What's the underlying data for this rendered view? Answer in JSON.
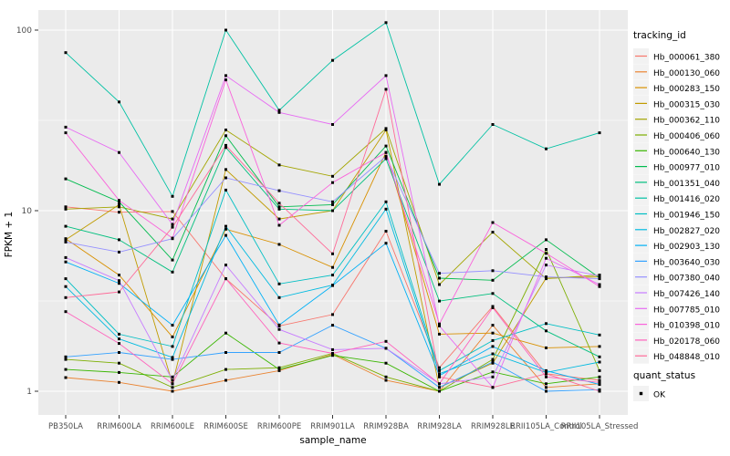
{
  "figure": {
    "y_axis": {
      "label": "FPKM + 1",
      "tick_labels": [
        "1",
        "10",
        "100"
      ]
    },
    "x_axis": {
      "label": "sample_name"
    },
    "legend": {
      "tracking_title": "tracking_id",
      "quant_title": "quant_status",
      "quant_item_label": "OK"
    },
    "colors": {
      "panel_bg": "#EBEBEB",
      "grid": "#FFFFFF",
      "axis_text": "#4D4D4D",
      "tick_mark": "#333333",
      "title_text": "#000000",
      "legend_key_bg": "#F2F2F2",
      "point": "#000000"
    }
  },
  "chart_data": {
    "type": "line",
    "title": "",
    "xlabel": "sample_name",
    "ylabel": "FPKM + 1",
    "y_scale": "log10",
    "ylim": [
      1,
      130
    ],
    "y_ticks": [
      1,
      10,
      100
    ],
    "y_minor_ticks": [
      3.1623,
      31.623
    ],
    "grid": true,
    "legend_position": "right",
    "point_marker": "black-square",
    "categories": [
      "PB350LA",
      "RRIM600LA",
      "RRIM600LE",
      "RRIM600SE",
      "RRIM600PE",
      "RRIM901LA",
      "RRIM928BA",
      "RRIM928LA",
      "RRIM928LE",
      "RRII105LA_Control",
      "RRII105LA_Stressed"
    ],
    "series": [
      {
        "name": "Hb_000061_380",
        "color": "#F8766D",
        "values": [
          10.5,
          9.8,
          9.9,
          4.2,
          2.3,
          2.66,
          7.7,
          1.35,
          2.95,
          1.25,
          1.15
        ]
      },
      {
        "name": "Hb_000130_060",
        "color": "#EA8331",
        "values": [
          1.19,
          1.12,
          1.0,
          1.15,
          1.3,
          1.6,
          1.15,
          1.0,
          2.32,
          1.05,
          1.1
        ]
      },
      {
        "name": "Hb_000283_150",
        "color": "#D89000",
        "values": [
          7.0,
          4.4,
          2.0,
          7.9,
          6.5,
          4.85,
          21,
          2.07,
          2.1,
          1.74,
          1.77
        ]
      },
      {
        "name": "Hb_000315_030",
        "color": "#C09B00",
        "values": [
          6.9,
          10.8,
          1.1,
          16.9,
          9.0,
          10.0,
          28,
          1.05,
          1.43,
          4.23,
          4.3
        ]
      },
      {
        "name": "Hb_000362_110",
        "color": "#A3A500",
        "values": [
          10.2,
          10.5,
          9.0,
          28,
          17.9,
          15.5,
          28.5,
          3.9,
          7.6,
          4.2,
          4.4
        ]
      },
      {
        "name": "Hb_000406_060",
        "color": "#7CAE00",
        "values": [
          1.5,
          1.43,
          1.05,
          1.32,
          1.35,
          1.62,
          1.2,
          1.0,
          1.5,
          6.1,
          1.3
        ]
      },
      {
        "name": "Hb_000640_130",
        "color": "#39B600",
        "values": [
          1.32,
          1.27,
          1.2,
          2.1,
          1.32,
          1.58,
          1.43,
          1.0,
          1.28,
          1.1,
          1.2
        ]
      },
      {
        "name": "Hb_000977_010",
        "color": "#00BB4E",
        "values": [
          15,
          11.2,
          5.33,
          26,
          10.5,
          10.8,
          22.8,
          4.23,
          4.12,
          6.9,
          4.25
        ]
      },
      {
        "name": "Hb_001351_040",
        "color": "#00BF7D",
        "values": [
          8.2,
          6.9,
          4.57,
          22.4,
          10.2,
          10.0,
          19.4,
          3.16,
          3.48,
          2.16,
          1.55
        ]
      },
      {
        "name": "Hb_001416_020",
        "color": "#00C1A3",
        "values": [
          75,
          40,
          12,
          100,
          36,
          68,
          110,
          14,
          30,
          22,
          27
        ]
      },
      {
        "name": "Hb_001946_150",
        "color": "#00BFC4",
        "values": [
          4.2,
          2.07,
          1.77,
          13,
          3.93,
          4.4,
          11.2,
          1.3,
          1.91,
          2.37,
          2.05
        ]
      },
      {
        "name": "Hb_002827_020",
        "color": "#00BAE0",
        "values": [
          3.8,
          1.95,
          1.54,
          8.2,
          3.3,
          3.87,
          10.2,
          1.25,
          1.61,
          1.27,
          1.45
        ]
      },
      {
        "name": "Hb_002903_130",
        "color": "#00B0F6",
        "values": [
          5.2,
          3.96,
          2.32,
          7.3,
          2.33,
          3.85,
          6.6,
          1.22,
          1.77,
          1.3,
          1.09
        ]
      },
      {
        "name": "Hb_003640_030",
        "color": "#35A2FF",
        "values": [
          1.55,
          1.64,
          1.5,
          1.64,
          1.64,
          2.32,
          1.73,
          1.05,
          1.45,
          1.0,
          1.02
        ]
      },
      {
        "name": "Hb_007380_040",
        "color": "#9590FF",
        "values": [
          6.7,
          5.9,
          7.0,
          15.2,
          12.9,
          11.2,
          20,
          4.5,
          4.65,
          4.3,
          4.2
        ]
      },
      {
        "name": "Hb_007426_140",
        "color": "#C77CFF",
        "values": [
          5.5,
          4.1,
          1.15,
          5.0,
          2.2,
          1.7,
          1.73,
          1.1,
          1.2,
          5.0,
          4.35
        ]
      },
      {
        "name": "Hb_007785_010",
        "color": "#E76BF3",
        "values": [
          29,
          21,
          8.4,
          56,
          35,
          30,
          56,
          2.3,
          1.05,
          5.45,
          3.9
        ]
      },
      {
        "name": "Hb_010398_010",
        "color": "#FA62DB",
        "values": [
          27,
          11.4,
          7.05,
          53,
          8.3,
          14.3,
          21,
          2.36,
          8.6,
          5.8,
          3.8
        ]
      },
      {
        "name": "Hb_020178_060",
        "color": "#FF62BC",
        "values": [
          2.76,
          1.84,
          1.1,
          4.2,
          1.85,
          1.62,
          1.89,
          1.1,
          2.9,
          1.2,
          1.12
        ]
      },
      {
        "name": "Hb_048848_010",
        "color": "#FF6A98",
        "values": [
          3.3,
          3.55,
          8.1,
          23,
          11,
          5.77,
          47,
          1.2,
          1.05,
          1.25,
          1.0
        ]
      }
    ],
    "quant_status": {
      "label": "OK",
      "point_color": "#000000",
      "point_shape": "square"
    }
  }
}
